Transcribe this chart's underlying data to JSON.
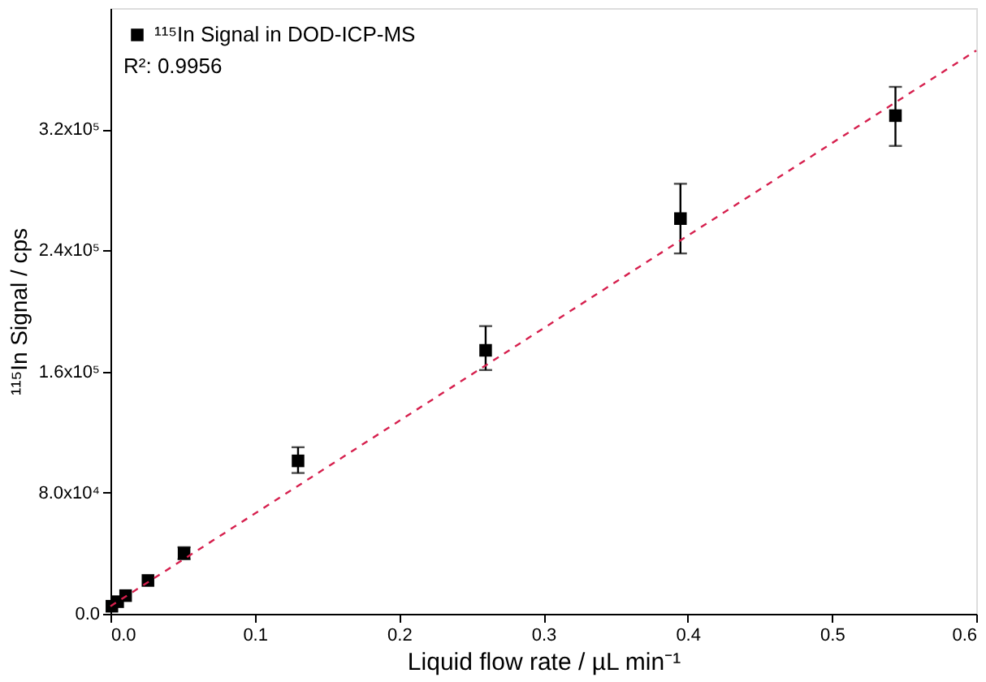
{
  "chart_data": {
    "type": "scatter",
    "xlabel": "Liquid flow rate / µL min⁻¹",
    "ylabel": "¹¹⁵In Signal / cps",
    "xlim": [
      0,
      0.6
    ],
    "xticks": [
      {
        "value": 0,
        "label": "0.0"
      },
      0.1,
      0.2,
      0.3,
      0.4,
      0.5,
      0.6
    ],
    "ylim": [
      0,
      400000
    ],
    "yticks": [
      {
        "value": 0,
        "label": "0.0"
      },
      {
        "value": 80000,
        "label": "8.0x10⁴"
      },
      {
        "value": 160000,
        "label": "1.6x10⁵"
      },
      {
        "value": 240000,
        "label": "2.4x10⁵"
      },
      {
        "value": 320000,
        "label": "3.2x10⁵"
      }
    ],
    "series": [
      {
        "name": "¹¹⁵In Signal in DOD-ICP-MS",
        "type": "scatter",
        "color": "#000000",
        "marker": "square",
        "x": [
          0.001,
          0.005,
          0.0105,
          0.026,
          0.051,
          0.13,
          0.26,
          0.395,
          0.544
        ],
        "values": [
          5000,
          8000,
          12000,
          22000,
          40000,
          101000,
          174000,
          261000,
          329000
        ],
        "errors": [
          null,
          null,
          null,
          null,
          [
            36000,
            44000
          ],
          [
            93000,
            110000
          ],
          [
            161000,
            190000
          ],
          [
            238000,
            284000
          ],
          [
            309000,
            348000
          ]
        ]
      },
      {
        "type": "line",
        "color": "#d6204e",
        "line_style": "dashed",
        "marker": "none",
        "x": [
          0,
          0.6
        ],
        "values": [
          5000,
          372000
        ]
      }
    ],
    "annotations": [
      "R²: 0.9956"
    ],
    "legend": "top left",
    "grid": false
  }
}
